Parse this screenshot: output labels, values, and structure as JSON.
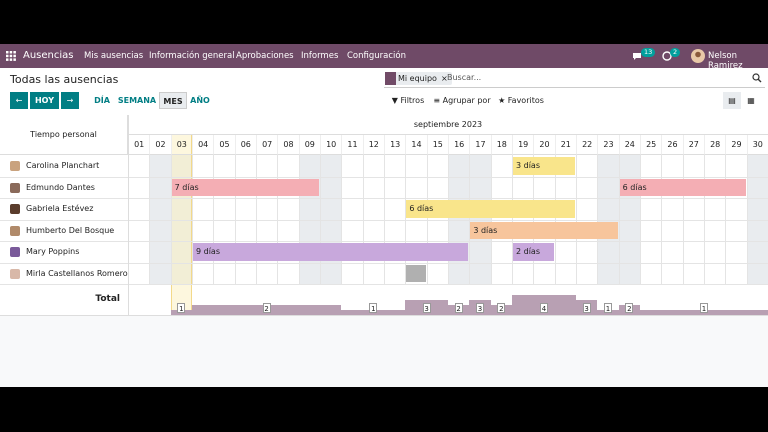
{
  "navbar": {
    "app": "Ausencias",
    "menu": [
      "Mis ausencias",
      "Información general",
      "Aprobaciones",
      "Informes",
      "Configuración"
    ],
    "chat_badge": "13",
    "activity_badge": "2",
    "user": "Nelson Ramirez"
  },
  "control_panel": {
    "title": "Todas las ausencias",
    "facet": "Mi equipo",
    "search_placeholder": "Buscar...",
    "today": "HOY",
    "scales": [
      "DÍA",
      "SEMANA",
      "MES",
      "AÑO"
    ],
    "active_scale": "MES",
    "filters": "Filtros",
    "group_by": "Agrupar por",
    "favorites": "Favoritos"
  },
  "gantt": {
    "row_header": "Tiempo personal",
    "month": "septiembre 2023",
    "today_day": 3,
    "days": [
      "01",
      "02",
      "03",
      "04",
      "05",
      "06",
      "07",
      "08",
      "09",
      "10",
      "11",
      "12",
      "13",
      "14",
      "15",
      "16",
      "17",
      "18",
      "19",
      "20",
      "21",
      "22",
      "23",
      "24",
      "25",
      "26",
      "27",
      "28",
      "29",
      "30"
    ],
    "weekend_days": [
      2,
      3,
      9,
      10,
      16,
      17,
      23,
      24,
      30
    ],
    "rows": [
      {
        "name": "Carolina Planchart",
        "bars": [
          {
            "label": "3 días",
            "start": 19,
            "end": 21,
            "color": "#f9e58b"
          }
        ]
      },
      {
        "name": "Edmundo Dantes",
        "bars": [
          {
            "label": "7 días",
            "start": 3,
            "end": 9,
            "color": "#f4aeb4"
          },
          {
            "label": "6 días",
            "start": 24,
            "end": 29,
            "color": "#f4aeb4"
          }
        ]
      },
      {
        "name": "Gabriela Estévez",
        "bars": [
          {
            "label": "6 días",
            "start": 14,
            "end": 21,
            "color": "#f9e58b"
          }
        ]
      },
      {
        "name": "Humberto Del Bosque",
        "bars": [
          {
            "label": "3 días",
            "start": 17,
            "end": 23,
            "color": "#f7c59c"
          }
        ]
      },
      {
        "name": "Mary Poppins",
        "bars": [
          {
            "label": "9 días",
            "start": 4,
            "end": 16,
            "color": "#c8a8dc"
          },
          {
            "label": "2 días",
            "start": 19,
            "end": 20,
            "color": "#c8a8dc"
          }
        ]
      },
      {
        "name": "Mirla Castellanos Romero",
        "bars": [
          {
            "start": 14,
            "end": 14,
            "color": "#b0b0b0"
          }
        ]
      }
    ],
    "total_label": "Total",
    "totals": [
      {
        "start": 3,
        "end": 3,
        "value": 1
      },
      {
        "start": 4,
        "end": 10,
        "value": 2
      },
      {
        "start": 11,
        "end": 13,
        "value": 1
      },
      {
        "start": 14,
        "end": 15,
        "value": 3
      },
      {
        "start": 16,
        "end": 16,
        "value": 2
      },
      {
        "start": 17,
        "end": 17,
        "value": 3
      },
      {
        "start": 18,
        "end": 18,
        "value": 2
      },
      {
        "start": 19,
        "end": 21,
        "value": 4
      },
      {
        "start": 22,
        "end": 22,
        "value": 3
      },
      {
        "start": 23,
        "end": 23,
        "value": 1
      },
      {
        "start": 24,
        "end": 24,
        "value": 2
      },
      {
        "start": 25,
        "end": 30,
        "value": 1
      }
    ]
  }
}
